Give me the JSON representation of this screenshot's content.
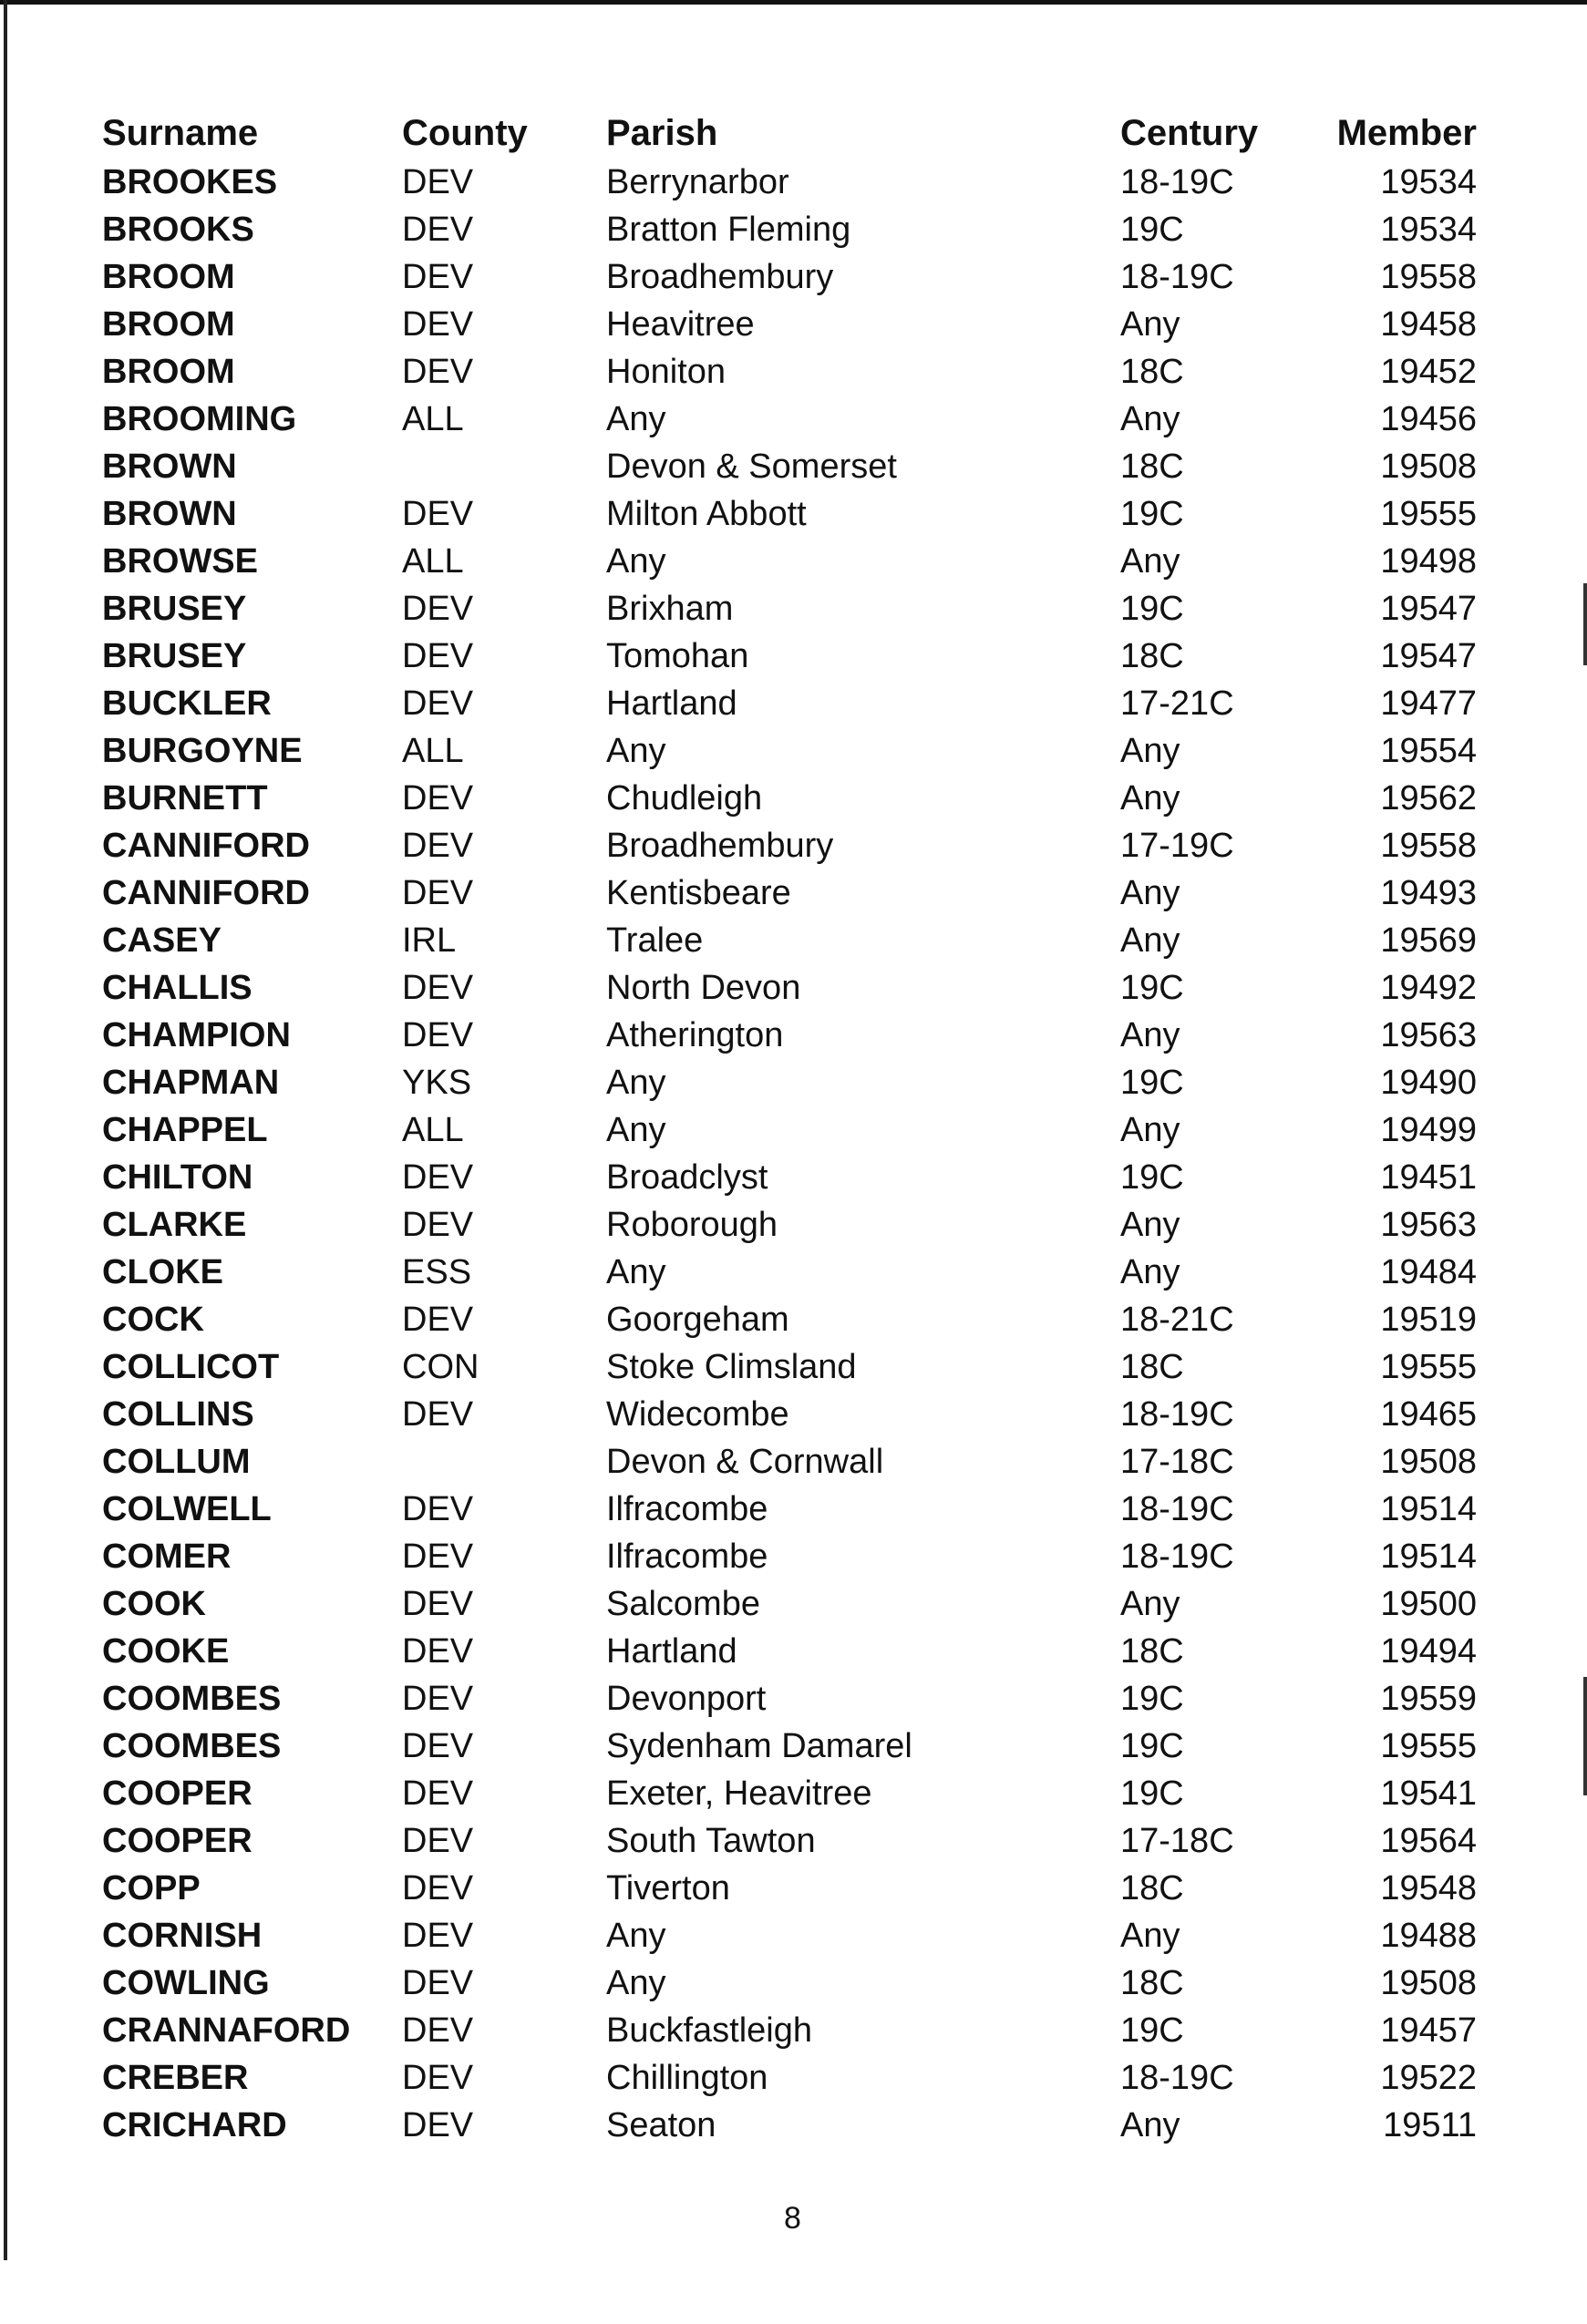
{
  "headers": [
    "Surname",
    "County",
    "Parish",
    "Century",
    "Member"
  ],
  "rows": [
    [
      "BROOKES",
      "DEV",
      "Berrynarbor",
      "18-19C",
      "19534"
    ],
    [
      "BROOKS",
      "DEV",
      "Bratton Fleming",
      "19C",
      "19534"
    ],
    [
      "BROOM",
      "DEV",
      "Broadhembury",
      "18-19C",
      "19558"
    ],
    [
      "BROOM",
      "DEV",
      "Heavitree",
      "Any",
      "19458"
    ],
    [
      "BROOM",
      "DEV",
      "Honiton",
      "18C",
      "19452"
    ],
    [
      "BROOMING",
      "ALL",
      "Any",
      "Any",
      "19456"
    ],
    [
      "BROWN",
      "",
      "Devon & Somerset",
      "18C",
      "19508"
    ],
    [
      "BROWN",
      "DEV",
      "Milton Abbott",
      "19C",
      "19555"
    ],
    [
      "BROWSE",
      "ALL",
      "Any",
      "Any",
      "19498"
    ],
    [
      "BRUSEY",
      "DEV",
      "Brixham",
      "19C",
      "19547"
    ],
    [
      "BRUSEY",
      "DEV",
      "Tomohan",
      "18C",
      "19547"
    ],
    [
      "BUCKLER",
      "DEV",
      "Hartland",
      "17-21C",
      "19477"
    ],
    [
      "BURGOYNE",
      "ALL",
      "Any",
      "Any",
      "19554"
    ],
    [
      "BURNETT",
      "DEV",
      "Chudleigh",
      "Any",
      "19562"
    ],
    [
      "CANNIFORD",
      "DEV",
      "Broadhembury",
      "17-19C",
      "19558"
    ],
    [
      "CANNIFORD",
      "DEV",
      "Kentisbeare",
      "Any",
      "19493"
    ],
    [
      "CASEY",
      "IRL",
      "Tralee",
      "Any",
      "19569"
    ],
    [
      "CHALLIS",
      "DEV",
      "North Devon",
      "19C",
      "19492"
    ],
    [
      "CHAMPION",
      "DEV",
      "Atherington",
      "Any",
      "19563"
    ],
    [
      "CHAPMAN",
      "YKS",
      "Any",
      "19C",
      "19490"
    ],
    [
      "CHAPPEL",
      "ALL",
      "Any",
      "Any",
      "19499"
    ],
    [
      "CHILTON",
      "DEV",
      "Broadclyst",
      "19C",
      "19451"
    ],
    [
      "CLARKE",
      "DEV",
      "Roborough",
      "Any",
      "19563"
    ],
    [
      "CLOKE",
      "ESS",
      "Any",
      "Any",
      "19484"
    ],
    [
      "COCK",
      "DEV",
      "Goorgeham",
      "18-21C",
      "19519"
    ],
    [
      "COLLICOT",
      "CON",
      "Stoke Climsland",
      "18C",
      "19555"
    ],
    [
      "COLLINS",
      "DEV",
      "Widecombe",
      "18-19C",
      "19465"
    ],
    [
      "COLLUM",
      "",
      "Devon & Cornwall",
      "17-18C",
      "19508"
    ],
    [
      "COLWELL",
      "DEV",
      "Ilfracombe",
      "18-19C",
      "19514"
    ],
    [
      "COMER",
      "DEV",
      "Ilfracombe",
      "18-19C",
      "19514"
    ],
    [
      "COOK",
      "DEV",
      "Salcombe",
      "Any",
      "19500"
    ],
    [
      "COOKE",
      "DEV",
      "Hartland",
      "18C",
      "19494"
    ],
    [
      "COOMBES",
      "DEV",
      "Devonport",
      "19C",
      "19559"
    ],
    [
      "COOMBES",
      "DEV",
      "Sydenham Damarel",
      "19C",
      "19555"
    ],
    [
      "COOPER",
      "DEV",
      "Exeter, Heavitree",
      "19C",
      "19541"
    ],
    [
      "COOPER",
      "DEV",
      "South Tawton",
      "17-18C",
      "19564"
    ],
    [
      "COPP",
      "DEV",
      "Tiverton",
      "18C",
      "19548"
    ],
    [
      "CORNISH",
      "DEV",
      "Any",
      "Any",
      "19488"
    ],
    [
      "COWLING",
      "DEV",
      "Any",
      "18C",
      "19508"
    ],
    [
      "CRANNAFORD",
      "DEV",
      "Buckfastleigh",
      "19C",
      "19457"
    ],
    [
      "CREBER",
      "DEV",
      "Chillington",
      "18-19C",
      "19522"
    ],
    [
      "CRICHARD",
      "DEV",
      "Seaton",
      "Any",
      "19511"
    ]
  ],
  "page_number": "8"
}
